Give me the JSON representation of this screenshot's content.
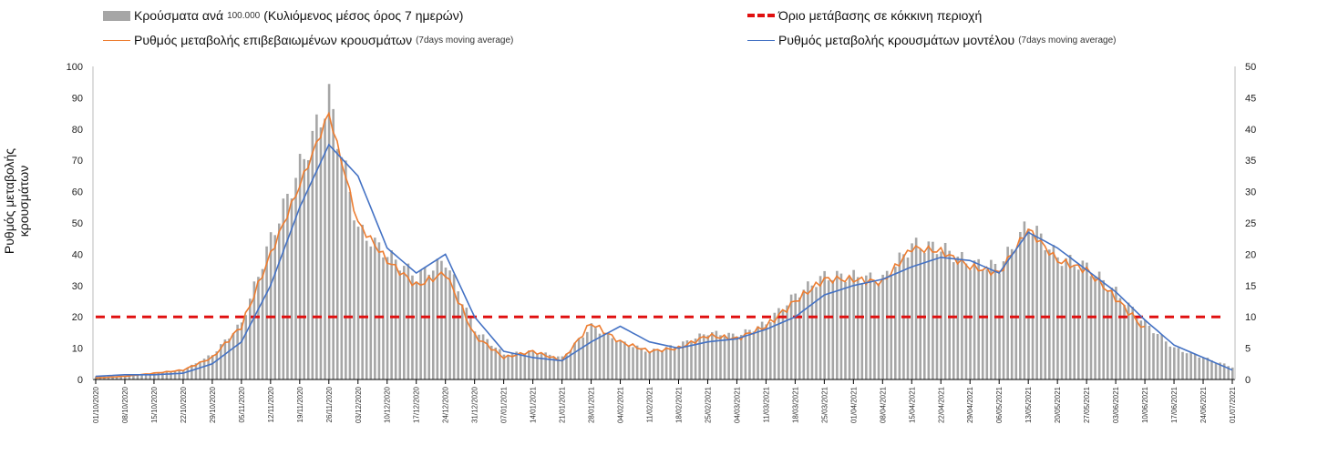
{
  "legend": {
    "bars": {
      "label": "Κρούσματα ανά",
      "small1": "100.000",
      "label2": "(Κυλιόμενος μέσος όρος 7 ημερών)"
    },
    "orange": {
      "label": "Ρυθμός μεταβολής επιβεβαιωμένων κρουσμάτων",
      "small": "(7days moving average)"
    },
    "red": {
      "label": "Όριο μετάβασης σε κόκκινη περιοχή"
    },
    "blue": {
      "label": "Ρυθμός μεταβολής κρουσμάτων μοντέλου",
      "small": "(7days moving average)"
    }
  },
  "chart_data": {
    "type": "bar+line",
    "ylabel": "Ρυθμός μεταβολής κρουσμάτων",
    "ylim": [
      0,
      100
    ],
    "y2lim": [
      0,
      50
    ],
    "yticks": [
      0,
      10,
      20,
      30,
      40,
      50,
      60,
      70,
      80,
      90,
      100
    ],
    "y2ticks": [
      0,
      5,
      10,
      15,
      20,
      25,
      30,
      35,
      40,
      45,
      50
    ],
    "threshold": 20,
    "categories": [
      "01/10/2020",
      "08/10/2020",
      "15/10/2020",
      "22/10/2020",
      "29/10/2020",
      "05/11/2020",
      "12/11/2020",
      "19/11/2020",
      "26/11/2020",
      "03/12/2020",
      "10/12/2020",
      "17/12/2020",
      "24/12/2020",
      "31/12/2020",
      "07/01/2021",
      "14/01/2021",
      "21/01/2021",
      "28/01/2021",
      "04/02/2021",
      "11/02/2021",
      "18/02/2021",
      "25/02/2021",
      "04/03/2021",
      "11/03/2021",
      "18/03/2021",
      "25/03/2021",
      "01/04/2021",
      "08/04/2021",
      "15/04/2021",
      "22/04/2021",
      "29/04/2021",
      "06/05/2021",
      "13/05/2021",
      "20/05/2021",
      "27/05/2021",
      "03/06/2021",
      "10/06/2021",
      "17/06/2021",
      "24/06/2021",
      "01/07/2021"
    ],
    "series": [
      {
        "name": "bars",
        "values": [
          1,
          1,
          2,
          3,
          8,
          18,
          45,
          68,
          90,
          48,
          40,
          33,
          38,
          16,
          8,
          9,
          7,
          17,
          12,
          9,
          11,
          15,
          14,
          18,
          27,
          33,
          33,
          32,
          43,
          42,
          37,
          36,
          50,
          39,
          36,
          28,
          18,
          10,
          7,
          4
        ]
      },
      {
        "name": "orange",
        "values": [
          0.5,
          1,
          2,
          3,
          7,
          17,
          40,
          62,
          85,
          50,
          38,
          30,
          34,
          14,
          7,
          9,
          6,
          18,
          12,
          9,
          10,
          14,
          13,
          17,
          25,
          32,
          32,
          31,
          42,
          41,
          36,
          34,
          48,
          38,
          35,
          26,
          16,
          null,
          null,
          null
        ]
      },
      {
        "name": "blue",
        "values": [
          1,
          1.5,
          1.5,
          2,
          5,
          12,
          30,
          55,
          75,
          65,
          42,
          34,
          40,
          20,
          9,
          7,
          6,
          12,
          17,
          12,
          10,
          12,
          13,
          16,
          20,
          27,
          30,
          32,
          36,
          39,
          38,
          34,
          47,
          42,
          35,
          28,
          19,
          11,
          7,
          3
        ]
      }
    ],
    "colors": {
      "bars": "#a6a6a6",
      "orange": "#ed7d31",
      "blue": "#4472c4",
      "threshold": "#e01010"
    }
  }
}
